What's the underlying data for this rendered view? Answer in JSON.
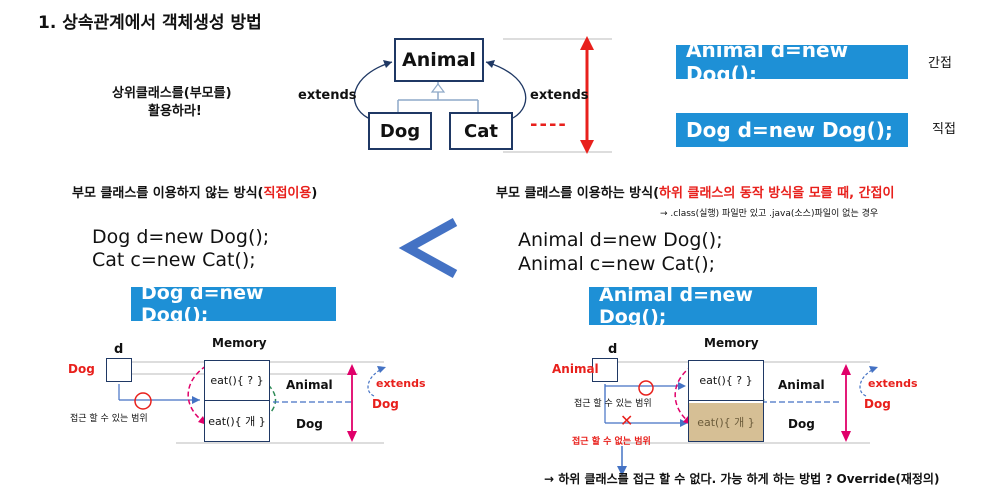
{
  "title": "1. 상속관계에서 객체생성 방법",
  "top": {
    "animal": "Animal",
    "dog": "Dog",
    "cat": "Cat",
    "extends_left": "extends",
    "extends_right": "extends",
    "advice_line1": "상위클래스를(부모를)",
    "advice_line2": "활용하라!",
    "dashes": "----",
    "code_indirect": "Animal d=new Dog();",
    "label_indirect": "간접",
    "code_direct": "Dog d=new Dog();",
    "label_direct": "직접"
  },
  "left": {
    "heading_prefix": "부모 클래스를 이용하지 않는 방식(",
    "heading_red": "직접이용",
    "heading_suffix": ")",
    "code1": "Dog d=new Dog();",
    "code2": "Cat c=new Cat();",
    "bar": "Dog d=new Dog();",
    "var_label": "d",
    "type_label": "Dog",
    "memory_label": "Memory",
    "cell_top": "eat(){ ? }",
    "cell_bottom": "eat(){ 개 }",
    "class_top": "Animal",
    "class_bottom": "Dog",
    "extends_label": "extends",
    "extends_target": "Dog",
    "range_label": "접근 할 수 있는 범위"
  },
  "compare_symbol": "<",
  "right": {
    "heading_prefix": "부모 클래스를 이용하는 방식(",
    "heading_red": "하위 클래스의 동작 방식을 모를 때, 간접이",
    "note": "→ .class(실행) 파일만 있고 .java(소스)파일이 없는 경우",
    "code1": "Animal d=new Dog();",
    "code2": "Animal c=new Cat();",
    "bar": "Animal d=new Dog();",
    "var_label": "d",
    "type_label": "Animal",
    "memory_label": "Memory",
    "cell_top": "eat(){ ? }",
    "cell_bottom": "eat(){ 개 }",
    "class_top": "Animal",
    "class_bottom": "Dog",
    "extends_label": "extends",
    "extends_target": "Dog",
    "range_label": "접근 할 수 있는 범위",
    "no_range_label": "접근 할 수 없는 범위",
    "x_mark": "✕",
    "conclusion": "→ 하위 클래스를 접근 할 수 없다. 가능 하게 하는 방법 ? Override(재정의)"
  },
  "colors": {
    "blue_bar": "#1e90d6",
    "red": "#e8201c",
    "navy": "#1f3864",
    "magenta": "#e0006a",
    "arrow_blue": "#4472c4"
  }
}
